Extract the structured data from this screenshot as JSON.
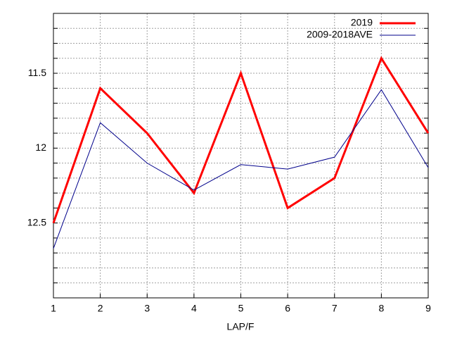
{
  "chart_data": {
    "type": "line",
    "xlabel": "LAP/F",
    "x": [
      1,
      2,
      3,
      4,
      5,
      6,
      7,
      8,
      9
    ],
    "xlim": [
      1,
      9
    ],
    "xticks": [
      1,
      2,
      3,
      4,
      5,
      6,
      7,
      8,
      9
    ],
    "ylim": [
      11.1,
      13.0
    ],
    "y_reversed": true,
    "yticks": [
      11.5,
      12,
      12.5
    ],
    "minor_yticks": [
      11.2,
      11.3,
      11.4,
      11.6,
      11.7,
      11.8,
      11.9,
      12.1,
      12.2,
      12.3,
      12.4,
      12.6,
      12.7,
      12.8,
      12.9
    ],
    "grid": true,
    "legend": "top-right",
    "series": [
      {
        "name": "2019",
        "color": "#ff0000",
        "width": 3,
        "values": [
          12.5,
          11.6,
          11.9,
          12.3,
          11.5,
          12.4,
          12.2,
          11.4,
          11.9
        ]
      },
      {
        "name": "2009-2018AVE",
        "color": "#00008b",
        "width": 1,
        "values": [
          12.67,
          11.83,
          12.1,
          12.28,
          12.11,
          12.14,
          12.06,
          11.61,
          12.13
        ]
      }
    ]
  }
}
